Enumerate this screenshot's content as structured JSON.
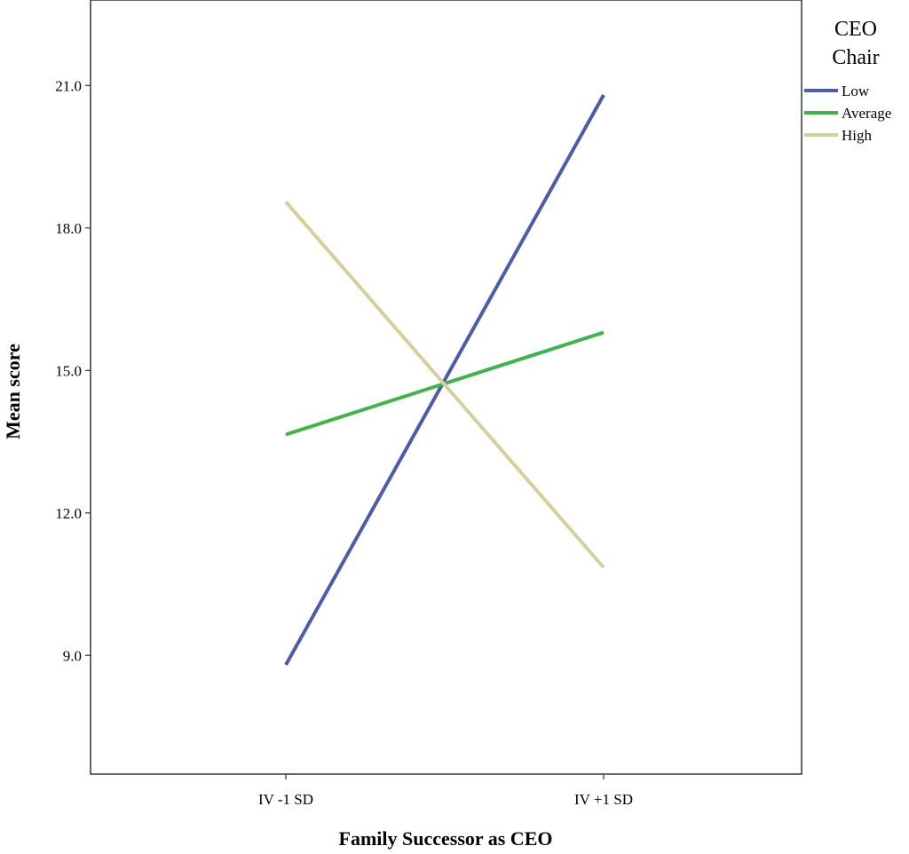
{
  "chart_data": {
    "type": "line",
    "title": "",
    "xlabel": "Family Successor as CEO",
    "ylabel": "Mean score",
    "categories": [
      "IV -1 SD",
      "IV +1 SD"
    ],
    "yticks": [
      "9.0",
      "12.0",
      "15.0",
      "18.0",
      "21.0"
    ],
    "ylim": [
      6.5,
      22.8
    ],
    "grid": false,
    "legend": {
      "title": "CEO Chair",
      "title_lines": [
        "CEO",
        "Chair"
      ],
      "position": "top-right"
    },
    "series": [
      {
        "name": "Low",
        "values": [
          8.8,
          20.8
        ],
        "color": "#4b5cae"
      },
      {
        "name": "Average",
        "values": [
          13.65,
          15.8
        ],
        "color": "#3db54a"
      },
      {
        "name": "High",
        "values": [
          18.55,
          10.85
        ],
        "color": "#d6cf9b"
      }
    ]
  }
}
